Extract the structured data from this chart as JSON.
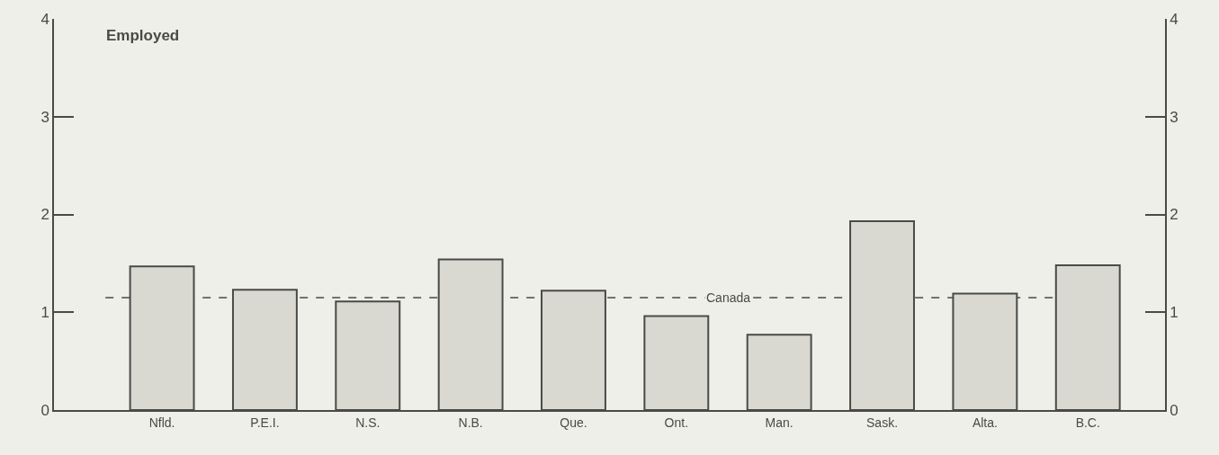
{
  "chart_data": {
    "type": "bar",
    "title": "Employed",
    "categories": [
      "Nfld.",
      "P.E.I.",
      "N.S.",
      "N.B.",
      "Que.",
      "Ont.",
      "Man.",
      "Sask.",
      "Alta.",
      "B.C."
    ],
    "values": [
      1.47,
      1.23,
      1.11,
      1.54,
      1.22,
      0.96,
      0.77,
      1.93,
      1.19,
      1.48
    ],
    "color": "#d9d9d2",
    "ylim": [
      0,
      4
    ],
    "yticks": [
      0,
      1,
      2,
      3,
      4
    ],
    "y2lim": [
      0,
      4
    ],
    "y2ticks": [
      0,
      1,
      2,
      3,
      4
    ],
    "ref_lines": [
      {
        "axis": "y",
        "value": 1.15,
        "label": "Canada",
        "line_style": "dashed"
      }
    ],
    "grid": false
  }
}
